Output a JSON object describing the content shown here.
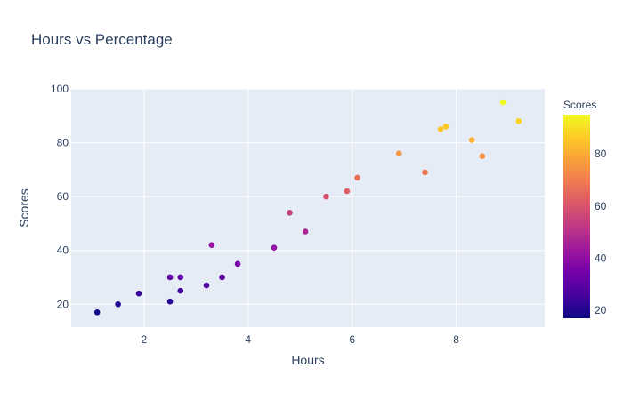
{
  "chart_data": {
    "type": "scatter",
    "title": "Hours vs Percentage",
    "xlabel": "Hours",
    "ylabel": "Scores",
    "xlim": [
      0.6,
      9.7
    ],
    "ylim": [
      11.5,
      100
    ],
    "x_ticks": [
      2,
      4,
      6,
      8
    ],
    "y_ticks": [
      20,
      40,
      60,
      80,
      100
    ],
    "grid": true,
    "plot_background": "#e5ecf6",
    "colorbar": {
      "title": "Scores",
      "range": [
        17,
        95
      ],
      "ticks": [
        20,
        40,
        60,
        80
      ],
      "colorscale": [
        "#0d0887",
        "#46039f",
        "#7201a8",
        "#9c179e",
        "#bd3786",
        "#d8576b",
        "#ed7953",
        "#fb9f3a",
        "#fdca26",
        "#f0f921"
      ]
    },
    "points": [
      {
        "x": 2.5,
        "y": 21
      },
      {
        "x": 5.1,
        "y": 47
      },
      {
        "x": 3.2,
        "y": 27
      },
      {
        "x": 8.5,
        "y": 75
      },
      {
        "x": 3.5,
        "y": 30
      },
      {
        "x": 1.5,
        "y": 20
      },
      {
        "x": 9.2,
        "y": 88
      },
      {
        "x": 5.5,
        "y": 60
      },
      {
        "x": 8.3,
        "y": 81
      },
      {
        "x": 2.7,
        "y": 25
      },
      {
        "x": 7.7,
        "y": 85
      },
      {
        "x": 5.9,
        "y": 62
      },
      {
        "x": 4.5,
        "y": 41
      },
      {
        "x": 3.3,
        "y": 42
      },
      {
        "x": 1.1,
        "y": 17
      },
      {
        "x": 8.9,
        "y": 95
      },
      {
        "x": 2.5,
        "y": 30
      },
      {
        "x": 1.9,
        "y": 24
      },
      {
        "x": 6.1,
        "y": 67
      },
      {
        "x": 7.4,
        "y": 69
      },
      {
        "x": 2.7,
        "y": 30
      },
      {
        "x": 4.8,
        "y": 54
      },
      {
        "x": 3.8,
        "y": 35
      },
      {
        "x": 6.9,
        "y": 76
      },
      {
        "x": 7.8,
        "y": 86
      }
    ]
  }
}
